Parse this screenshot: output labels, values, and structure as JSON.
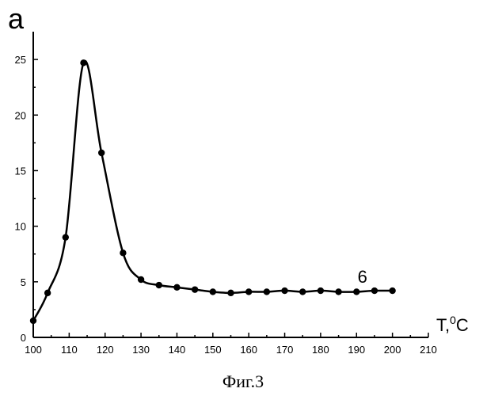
{
  "panel_label": "a",
  "caption": "Фиг.3",
  "chart_data": {
    "type": "line",
    "title": "",
    "xlabel": "T,",
    "xlabel_sup": "0",
    "xlabel_unit": "C",
    "ylabel": "",
    "xlim": [
      100,
      210
    ],
    "ylim": [
      0,
      27.5
    ],
    "x_ticks": [
      100,
      110,
      120,
      130,
      140,
      150,
      160,
      170,
      180,
      190,
      200,
      210
    ],
    "y_ticks": [
      0,
      5,
      10,
      15,
      20,
      25
    ],
    "grid": false,
    "series": [
      {
        "name": "6",
        "x": [
          100,
          104,
          109,
          114,
          119,
          125,
          130,
          135,
          140,
          145,
          150,
          155,
          160,
          165,
          170,
          175,
          180,
          185,
          190,
          195,
          200
        ],
        "y": [
          1.5,
          4.0,
          9.0,
          24.7,
          16.6,
          7.6,
          5.2,
          4.7,
          4.5,
          4.3,
          4.1,
          4.0,
          4.1,
          4.1,
          4.2,
          4.1,
          4.2,
          4.1,
          4.1,
          4.2,
          4.2
        ]
      }
    ]
  }
}
